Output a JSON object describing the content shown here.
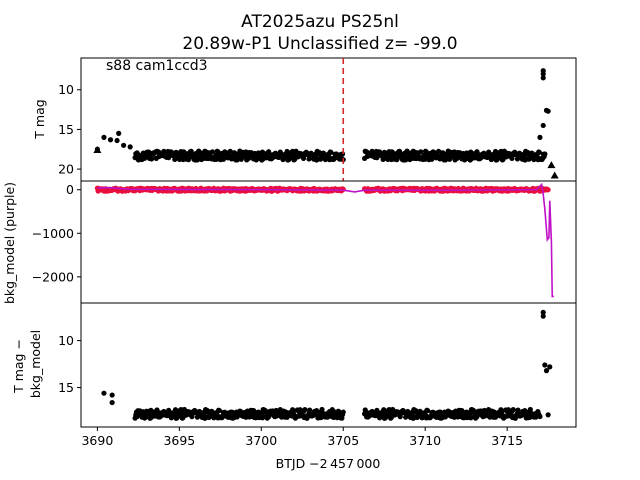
{
  "title": {
    "line1": "AT2025azu  PS25nl",
    "line2": "20.89w-P1 Unclassified z= -99.0"
  },
  "colors": {
    "data": "#000000",
    "bkg_points": "#e8103c",
    "bkg_model_line": "#c010c8",
    "marker_line": "#d62728"
  },
  "chart_data": [
    {
      "type": "scatter",
      "panel": "top",
      "annotation": "s88 cam1ccd3",
      "xlabel": "",
      "ylabel": "T mag",
      "xlim": [
        3689.0,
        3719.2
      ],
      "ylim": [
        21.5,
        6.0
      ],
      "y_inverted": true,
      "yticks": [
        10,
        15,
        20
      ],
      "vertical_line_x": 3705.0,
      "series": [
        {
          "marker": "circle",
          "segments": [
            {
              "x": [
                3690.0,
                3690.4,
                3690.8,
                3691.2,
                3691.6,
                3692.0
              ],
              "y": [
                17.5,
                16.0,
                16.3,
                16.4,
                17.0,
                17.2
              ]
            },
            {
              "x": [
                3692.3,
                3705.0
              ],
              "y": [
                18.3,
                18.3
              ]
            },
            {
              "x": [
                3706.3,
                3717.3
              ],
              "y": [
                18.3,
                18.3
              ]
            }
          ],
          "points": [
            {
              "x": 3691.3,
              "y": 15.5
            },
            {
              "x": 3717.0,
              "y": 16.0
            },
            {
              "x": 3717.2,
              "y": 14.5
            },
            {
              "x": 3717.4,
              "y": 12.6
            },
            {
              "x": 3717.5,
              "y": 12.7
            },
            {
              "x": 3717.2,
              "y": 7.6
            },
            {
              "x": 3717.2,
              "y": 8.0
            },
            {
              "x": 3717.2,
              "y": 8.5
            }
          ]
        },
        {
          "marker": "triangle",
          "points": [
            {
              "x": 3690.0,
              "y": 17.6
            },
            {
              "x": 3717.7,
              "y": 19.5
            },
            {
              "x": 3717.9,
              "y": 20.8
            }
          ]
        }
      ]
    },
    {
      "type": "line",
      "panel": "middle",
      "xlabel": "",
      "ylabel": "bkg_model (purple)",
      "xlim": [
        3689.0,
        3719.2
      ],
      "ylim": [
        -2600,
        200
      ],
      "yticks": [
        0,
        -1000,
        -2000
      ],
      "series": [
        {
          "style": "points",
          "segments": [
            {
              "x": [
                3690.0,
                3705.0
              ],
              "y": [
                0,
                0
              ]
            },
            {
              "x": [
                3706.3,
                3717.5
              ],
              "y": [
                0,
                0
              ]
            }
          ]
        },
        {
          "style": "line",
          "x": [
            3690.0,
            3690.6,
            3692.0,
            3700.0,
            3705.0,
            3705.7,
            3706.3,
            3712.0,
            3716.8,
            3717.1,
            3717.2,
            3717.3,
            3717.45,
            3717.55,
            3717.6,
            3717.7,
            3717.75,
            3717.85
          ],
          "y": [
            40,
            50,
            10,
            0,
            -10,
            -50,
            -10,
            -10,
            0,
            120,
            -100,
            -450,
            -1150,
            -1100,
            -250,
            -1200,
            -2450,
            -2450
          ]
        }
      ]
    },
    {
      "type": "scatter",
      "panel": "bottom",
      "xlabel": "BTJD −2 457 000",
      "ylabel": "T mag − bkg_model",
      "xlim": [
        3689.0,
        3719.2
      ],
      "ylim": [
        19.2,
        6.0
      ],
      "y_inverted": true,
      "yticks": [
        10,
        15
      ],
      "xticks": [
        3690,
        3695,
        3700,
        3705,
        3710,
        3715
      ],
      "series": [
        {
          "marker": "circle",
          "segments": [
            {
              "x": [
                3692.3,
                3705.0
              ],
              "y": [
                17.8,
                17.8
              ]
            },
            {
              "x": [
                3706.3,
                3717.0
              ],
              "y": [
                17.8,
                17.8
              ]
            }
          ],
          "points": [
            {
              "x": 3690.4,
              "y": 15.6
            },
            {
              "x": 3690.9,
              "y": 15.8
            },
            {
              "x": 3690.9,
              "y": 16.6
            },
            {
              "x": 3717.2,
              "y": 7.0
            },
            {
              "x": 3717.2,
              "y": 7.4
            },
            {
              "x": 3717.3,
              "y": 12.6
            },
            {
              "x": 3717.6,
              "y": 12.8
            },
            {
              "x": 3717.4,
              "y": 13.2
            },
            {
              "x": 3717.5,
              "y": 17.9
            }
          ]
        }
      ]
    }
  ]
}
